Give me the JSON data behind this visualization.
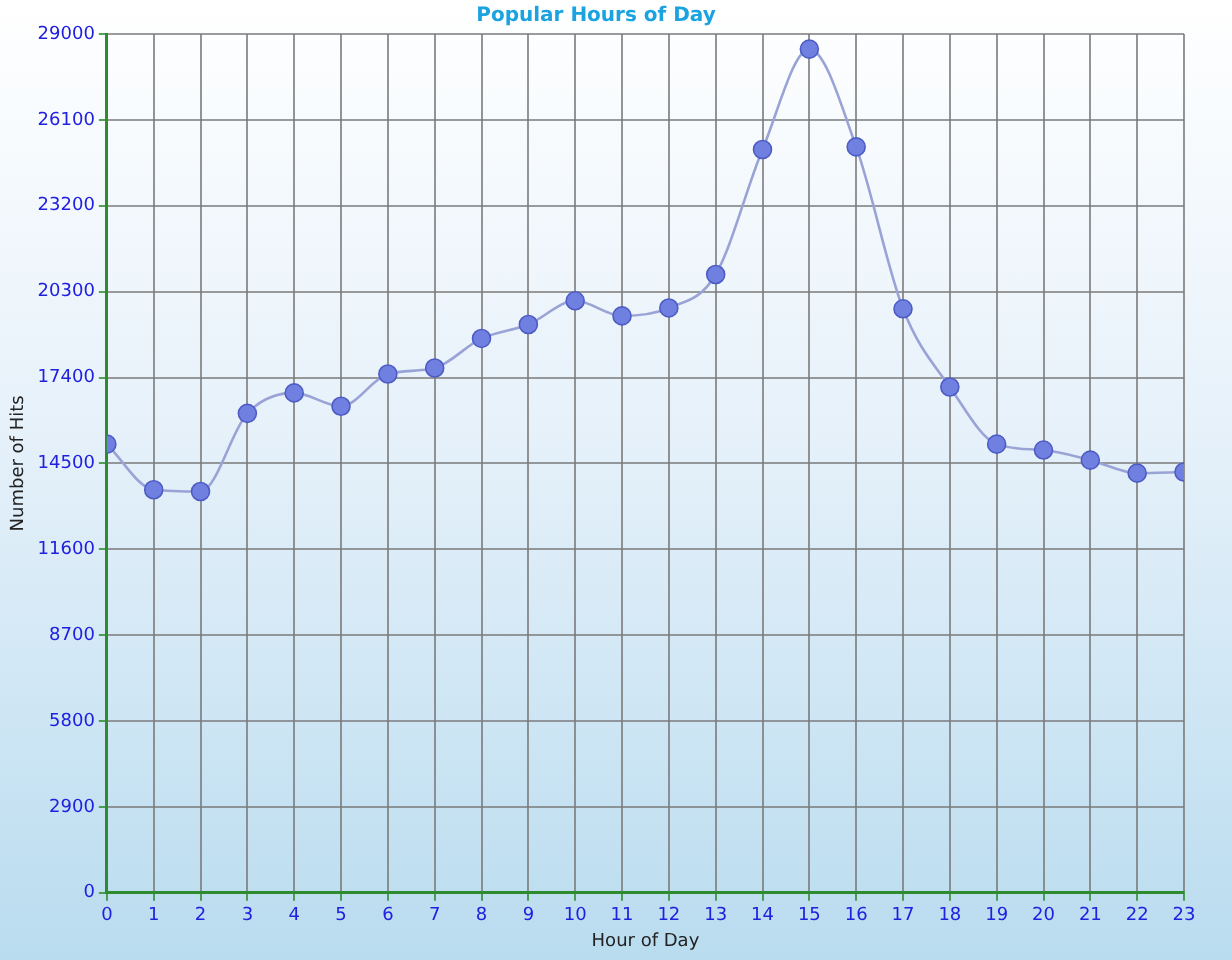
{
  "chart_data": {
    "type": "line",
    "title": "Popular Hours of Day",
    "xlabel": "Hour of Day",
    "ylabel": "Number of Hits",
    "x": [
      0,
      1,
      2,
      3,
      4,
      5,
      6,
      7,
      8,
      9,
      10,
      11,
      12,
      13,
      14,
      15,
      16,
      17,
      18,
      19,
      20,
      21,
      22,
      23
    ],
    "series": [
      {
        "color": "#7080e0",
        "values": [
          15150,
          13610,
          13550,
          16190,
          16880,
          16430,
          17520,
          17720,
          18720,
          19190,
          19990,
          19480,
          19750,
          20880,
          25100,
          28490,
          25190,
          19720,
          17080,
          15150,
          14950,
          14610,
          14170,
          14210
        ]
      }
    ],
    "xlim": [
      0,
      23
    ],
    "xticks": [
      0,
      1,
      2,
      3,
      4,
      5,
      6,
      7,
      8,
      9,
      10,
      11,
      12,
      13,
      14,
      15,
      16,
      17,
      18,
      19,
      20,
      21,
      22,
      23
    ],
    "ylim": [
      0,
      29000
    ],
    "yticks": [
      0,
      2900,
      5800,
      8700,
      11600,
      14500,
      17400,
      20300,
      23200,
      26100,
      29000
    ],
    "grid": true,
    "legend": false,
    "marker": "circle",
    "line_style": "solid"
  }
}
